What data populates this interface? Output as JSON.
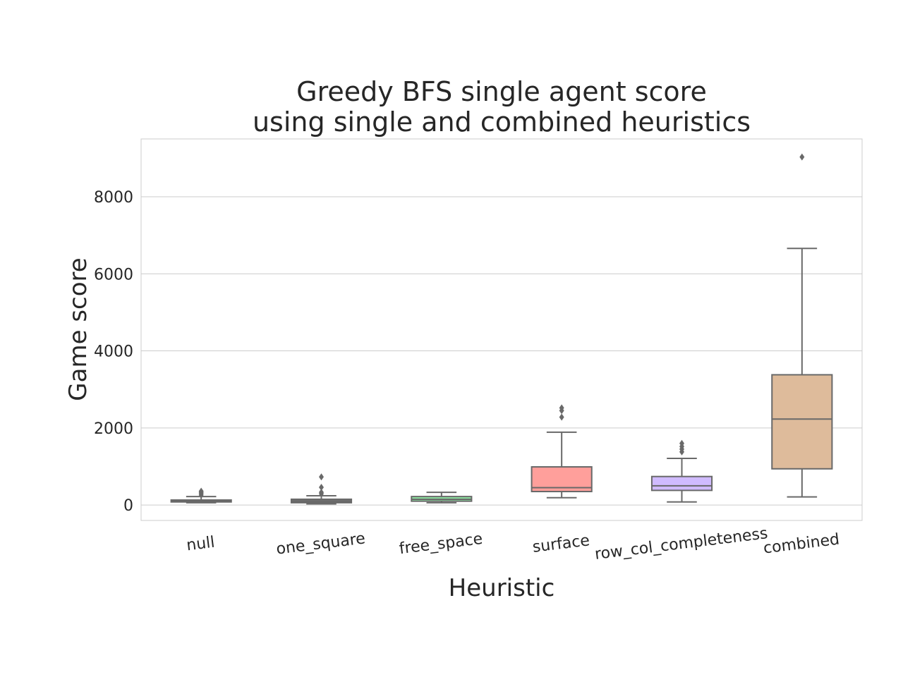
{
  "chart_data": {
    "type": "box",
    "title": [
      "Greedy BFS single agent score",
      "using single and combined heuristics"
    ],
    "xlabel": "Heuristic",
    "ylabel": "Game score",
    "ylim": [
      -400,
      9500
    ],
    "yticks": [
      0,
      2000,
      4000,
      6000,
      8000
    ],
    "grid": "horizontal",
    "categories": [
      "null",
      "one_square",
      "free_space",
      "surface",
      "row_col_completeness",
      "combined"
    ],
    "boxes": [
      {
        "name": "null",
        "color": "#6e6e6e",
        "whisker_low": 60,
        "q1": 80,
        "median": 100,
        "q3": 130,
        "whisker_high": 220,
        "outliers": [
          260,
          300,
          330,
          360
        ]
      },
      {
        "name": "one_square",
        "color": "#6e6e6e",
        "whisker_low": 30,
        "q1": 60,
        "median": 90,
        "q3": 150,
        "whisker_high": 240,
        "outliers": [
          290,
          330,
          460,
          730
        ]
      },
      {
        "name": "free_space",
        "color": "#8de5a1",
        "whisker_low": 60,
        "q1": 100,
        "median": 150,
        "q3": 220,
        "whisker_high": 330,
        "outliers": []
      },
      {
        "name": "surface",
        "color": "#ff9f9b",
        "whisker_low": 190,
        "q1": 350,
        "median": 450,
        "q3": 990,
        "whisker_high": 1890,
        "outliers": [
          2280,
          2450,
          2520
        ]
      },
      {
        "name": "row_col_completeness",
        "color": "#d0bbff",
        "whisker_low": 80,
        "q1": 380,
        "median": 500,
        "q3": 740,
        "whisker_high": 1210,
        "outliers": [
          1380,
          1450,
          1520,
          1600
        ]
      },
      {
        "name": "combined",
        "color": "#debb9b",
        "whisker_low": 210,
        "q1": 940,
        "median": 2230,
        "q3": 3380,
        "whisker_high": 6660,
        "outliers": [
          9030
        ]
      }
    ]
  }
}
